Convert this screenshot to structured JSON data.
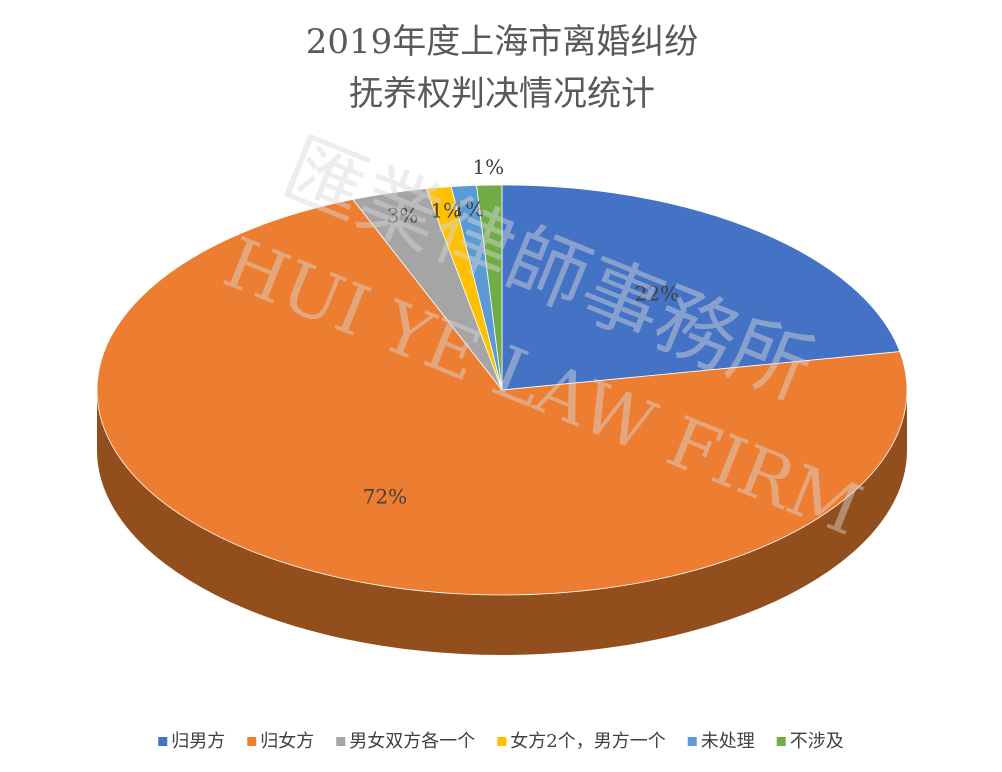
{
  "chart_data": {
    "type": "pie",
    "title": [
      "2019年度上海市离婚纠纷",
      "抚养权判决情况统计"
    ],
    "categories": [
      "归男方",
      "归女方",
      "男女双方各一个",
      "女方2个，男方一个",
      "未处理",
      "不涉及"
    ],
    "values": [
      22,
      72,
      3,
      1,
      1,
      1
    ],
    "value_labels": [
      "22%",
      "72%",
      "3%",
      "1%",
      "1%",
      "1%"
    ],
    "colors": [
      "#4472c4",
      "#ed7d31",
      "#a5a5a5",
      "#ffc000",
      "#5b9bd5",
      "#70ad47"
    ],
    "legend": "bottom",
    "watermark": [
      "匯業律師事務所",
      "HUI YE LAW FIRM"
    ]
  }
}
